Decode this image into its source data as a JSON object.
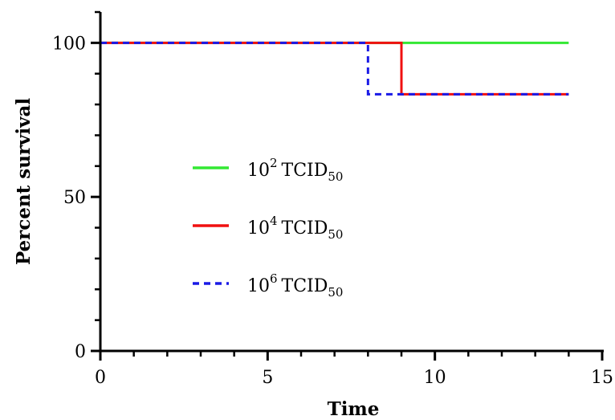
{
  "chart_data": {
    "type": "line",
    "subtype": "kaplan-meier-step",
    "xlabel": "Time",
    "ylabel": "Percent survival",
    "xlim": [
      0,
      15
    ],
    "ylim": [
      0,
      110
    ],
    "x_ticks": [
      0,
      5,
      10,
      15
    ],
    "y_ticks": [
      0,
      50,
      100
    ],
    "x_minor_step": 1,
    "y_minor_step": 10,
    "grid": false,
    "legend_position": "center-left",
    "series": [
      {
        "name": "10^2 TCID50",
        "label_base": "10",
        "label_exp": "2",
        "label_unit": "TCID",
        "label_sub": "50",
        "color": "#33e833",
        "dash": "solid",
        "points": [
          [
            0,
            100
          ],
          [
            14,
            100
          ]
        ]
      },
      {
        "name": "10^4 TCID50",
        "label_base": "10",
        "label_exp": "4",
        "label_unit": "TCID",
        "label_sub": "50",
        "color": "#f01010",
        "dash": "solid",
        "points": [
          [
            0,
            100
          ],
          [
            9,
            100
          ],
          [
            9,
            83.3
          ],
          [
            14,
            83.3
          ]
        ]
      },
      {
        "name": "10^6 TCID50",
        "label_base": "10",
        "label_exp": "6",
        "label_unit": "TCID",
        "label_sub": "50",
        "color": "#1a1ae6",
        "dash": "dashed",
        "points": [
          [
            0,
            100
          ],
          [
            8,
            100
          ],
          [
            8,
            83.3
          ],
          [
            14,
            83.3
          ]
        ]
      }
    ]
  }
}
